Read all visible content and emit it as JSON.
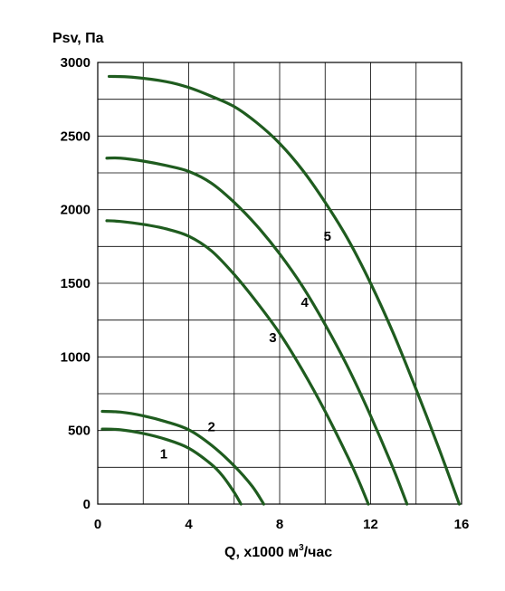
{
  "chart_data": {
    "type": "line",
    "title": "",
    "ylabel": "Psv, Па",
    "xlabel_prefix": "Q, x1000 м",
    "xlabel_sup": "3",
    "xlabel_suffix": "/час",
    "xlim": [
      0,
      16
    ],
    "ylim": [
      0,
      3000
    ],
    "x_ticks": [
      0,
      4,
      8,
      12,
      16
    ],
    "y_ticks": [
      0,
      500,
      1000,
      1500,
      2000,
      2500,
      3000
    ],
    "grid": true,
    "line_color": "#1f5c1f",
    "series": [
      {
        "name": "1",
        "label_at": [
          2.9,
          310
        ],
        "points": [
          [
            0.2,
            510
          ],
          [
            1.0,
            505
          ],
          [
            2.0,
            480
          ],
          [
            3.0,
            440
          ],
          [
            4.0,
            380
          ],
          [
            5.0,
            270
          ],
          [
            5.5,
            190
          ],
          [
            6.0,
            80
          ],
          [
            6.3,
            0
          ]
        ]
      },
      {
        "name": "2",
        "label_at": [
          5.0,
          495
        ],
        "points": [
          [
            0.2,
            630
          ],
          [
            1.0,
            625
          ],
          [
            2.0,
            600
          ],
          [
            3.0,
            560
          ],
          [
            4.0,
            505
          ],
          [
            5.0,
            400
          ],
          [
            6.0,
            260
          ],
          [
            6.8,
            120
          ],
          [
            7.3,
            0
          ]
        ]
      },
      {
        "name": "3",
        "label_at": [
          7.7,
          1100
        ],
        "points": [
          [
            0.4,
            1925
          ],
          [
            1.0,
            1920
          ],
          [
            2.0,
            1900
          ],
          [
            3.0,
            1870
          ],
          [
            4.0,
            1820
          ],
          [
            5.0,
            1720
          ],
          [
            6.0,
            1560
          ],
          [
            7.0,
            1370
          ],
          [
            8.0,
            1160
          ],
          [
            9.0,
            910
          ],
          [
            10.0,
            630
          ],
          [
            11.0,
            320
          ],
          [
            11.5,
            150
          ],
          [
            11.9,
            0
          ]
        ]
      },
      {
        "name": "4",
        "label_at": [
          9.1,
          1340
        ],
        "points": [
          [
            0.4,
            2350
          ],
          [
            1.0,
            2350
          ],
          [
            2.0,
            2330
          ],
          [
            3.0,
            2300
          ],
          [
            4.0,
            2260
          ],
          [
            5.0,
            2180
          ],
          [
            6.0,
            2050
          ],
          [
            7.0,
            1890
          ],
          [
            8.0,
            1700
          ],
          [
            9.0,
            1480
          ],
          [
            10.0,
            1220
          ],
          [
            11.0,
            930
          ],
          [
            12.0,
            600
          ],
          [
            13.0,
            240
          ],
          [
            13.6,
            0
          ]
        ]
      },
      {
        "name": "5",
        "label_at": [
          10.1,
          1790
        ],
        "points": [
          [
            0.5,
            2905
          ],
          [
            1.5,
            2900
          ],
          [
            3.0,
            2870
          ],
          [
            4.0,
            2830
          ],
          [
            5.0,
            2770
          ],
          [
            6.0,
            2700
          ],
          [
            7.0,
            2590
          ],
          [
            8.0,
            2450
          ],
          [
            9.0,
            2270
          ],
          [
            10.0,
            2050
          ],
          [
            11.0,
            1800
          ],
          [
            12.0,
            1500
          ],
          [
            13.0,
            1160
          ],
          [
            14.0,
            780
          ],
          [
            15.0,
            380
          ],
          [
            15.9,
            0
          ]
        ]
      }
    ]
  }
}
